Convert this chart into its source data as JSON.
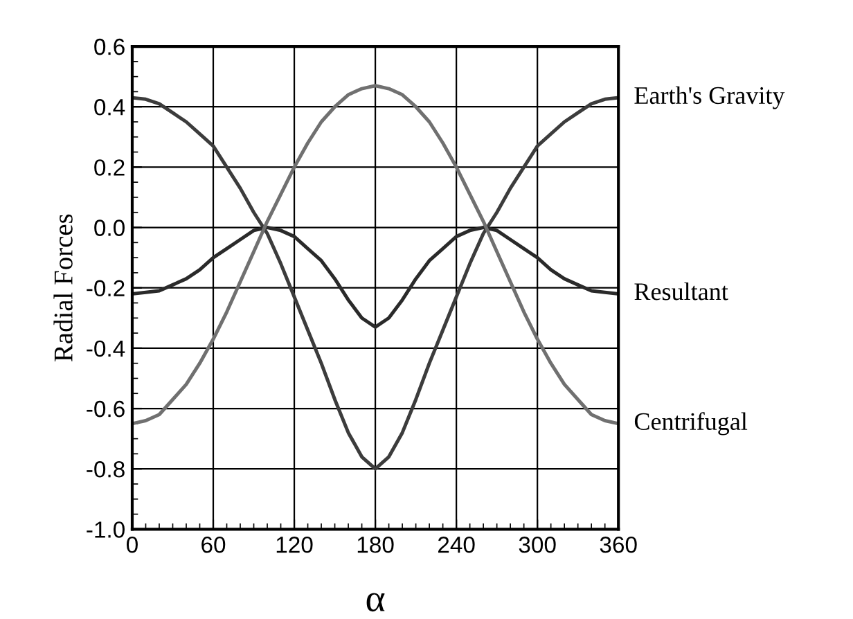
{
  "chart_data": {
    "type": "line",
    "xlabel": "α",
    "ylabel": "Radial Forces",
    "x": [
      0,
      10,
      20,
      30,
      40,
      50,
      60,
      70,
      80,
      90,
      100,
      110,
      120,
      130,
      140,
      150,
      160,
      170,
      180,
      190,
      200,
      210,
      220,
      230,
      240,
      250,
      260,
      270,
      280,
      290,
      300,
      310,
      320,
      330,
      340,
      350,
      360
    ],
    "series": [
      {
        "name": "Earth's Gravity",
        "color": "#3c3c3c",
        "values": [
          0.43,
          0.425,
          0.41,
          0.38,
          0.35,
          0.31,
          0.27,
          0.2,
          0.13,
          0.05,
          -0.02,
          -0.12,
          -0.23,
          -0.34,
          -0.45,
          -0.57,
          -0.68,
          -0.76,
          -0.8,
          -0.76,
          -0.68,
          -0.57,
          -0.45,
          -0.34,
          -0.23,
          -0.12,
          -0.02,
          0.05,
          0.13,
          0.2,
          0.27,
          0.31,
          0.35,
          0.38,
          0.41,
          0.425,
          0.43
        ]
      },
      {
        "name": "Resultant",
        "color": "#2a2a2a",
        "values": [
          -0.22,
          -0.215,
          -0.21,
          -0.19,
          -0.17,
          -0.14,
          -0.1,
          -0.07,
          -0.04,
          -0.01,
          0.0,
          -0.01,
          -0.03,
          -0.07,
          -0.11,
          -0.17,
          -0.24,
          -0.3,
          -0.33,
          -0.3,
          -0.24,
          -0.17,
          -0.11,
          -0.07,
          -0.03,
          -0.01,
          0.0,
          -0.01,
          -0.04,
          -0.07,
          -0.1,
          -0.14,
          -0.17,
          -0.19,
          -0.21,
          -0.215,
          -0.22
        ]
      },
      {
        "name": "Centrifugal",
        "color": "#707070",
        "values": [
          -0.65,
          -0.64,
          -0.62,
          -0.57,
          -0.52,
          -0.45,
          -0.37,
          -0.28,
          -0.18,
          -0.08,
          0.02,
          0.11,
          0.2,
          0.28,
          0.35,
          0.4,
          0.44,
          0.46,
          0.47,
          0.46,
          0.44,
          0.4,
          0.35,
          0.28,
          0.2,
          0.11,
          0.02,
          -0.08,
          -0.18,
          -0.28,
          -0.37,
          -0.45,
          -0.52,
          -0.57,
          -0.62,
          -0.64,
          -0.65
        ]
      }
    ],
    "xlim": [
      0,
      360
    ],
    "xticks": [
      0,
      60,
      120,
      180,
      240,
      300,
      360
    ],
    "ylim": [
      -1.0,
      0.6
    ],
    "yticks": [
      {
        "value": -1.0,
        "label": "-1.0"
      },
      {
        "value": -0.8,
        "label": "-0.8"
      },
      {
        "value": -0.6,
        "label": "-0.6"
      },
      {
        "value": -0.4,
        "label": "-0.4"
      },
      {
        "value": -0.2,
        "label": "-0.2"
      },
      {
        "value": 0.0,
        "label": "0.0"
      },
      {
        "value": 0.2,
        "label": "0.2"
      },
      {
        "value": 0.4,
        "label": "0.4"
      },
      {
        "value": 0.6,
        "label": "0.6"
      }
    ],
    "grid": true,
    "legend": false,
    "marker": "none",
    "line_style": "solid"
  }
}
